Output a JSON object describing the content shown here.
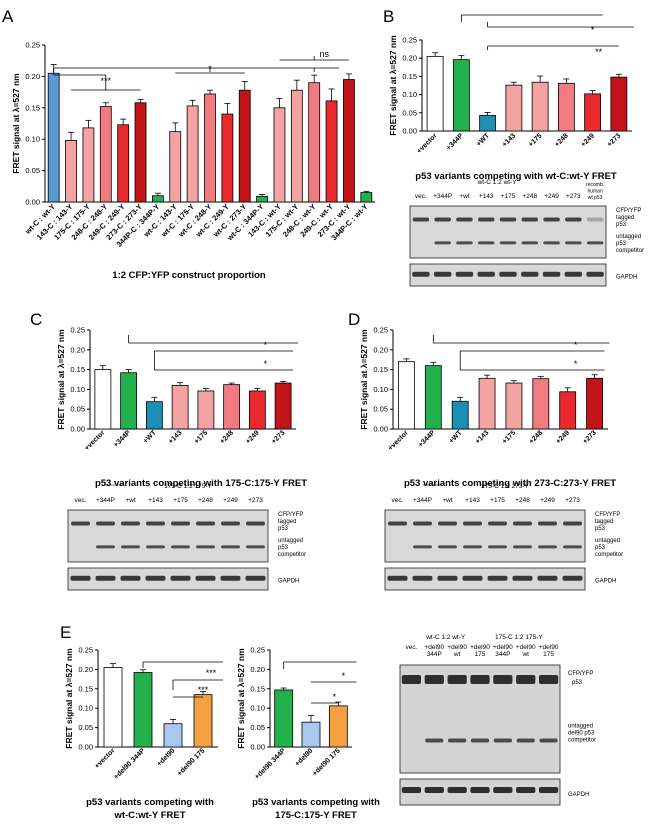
{
  "colors": {
    "blue": "#5b9bd5",
    "green": "#22b14c",
    "teal": "#1b8fb5",
    "pink1": "#f4a3a3",
    "pink2": "#f07b80",
    "red": "#e8292e",
    "dark": "#c3141a",
    "dark2": "#a10d14",
    "white": "#ffffff",
    "lightblue": "#a8c8f0",
    "orange": "#f5a040"
  },
  "chart_data": [
    {
      "panel": "A",
      "type": "bar",
      "ylabel": "FRET signal at λ=527 nm",
      "ylim": [
        0,
        0.25
      ],
      "yticks": [
        "0.00",
        "0.05",
        "0.10",
        "0.15",
        "0.20",
        "0.25"
      ],
      "xlabel": "1:2 CFP:YFP construct proportion",
      "categories": [
        "wt-C : wt-Y",
        "143-C : 143-Y",
        "175-C : 175-Y",
        "248-C : 248-Y",
        "249-C : 249-Y",
        "273-C : 273-Y",
        "344P-C : 344P-Y",
        "wt-C : 143-Y",
        "wt-C : 175-Y",
        "wt-C : 248-Y",
        "wt-C : 249-Y",
        "wt-C : 273-Y",
        "wt-C : 344P-Y",
        "143-C : wt-Y",
        "175-C : wt-Y",
        "248-C : wt-Y",
        "249-C : wt-Y",
        "273-C : wt-Y",
        "344P-C : wt-Y"
      ],
      "values": [
        0.205,
        0.098,
        0.118,
        0.152,
        0.123,
        0.158,
        0.01,
        0.112,
        0.153,
        0.172,
        0.14,
        0.178,
        0.009,
        0.15,
        0.178,
        0.19,
        0.161,
        0.195,
        0.015
      ],
      "errors": [
        0.014,
        0.013,
        0.012,
        0.006,
        0.009,
        0.005,
        0.004,
        0.014,
        0.009,
        0.006,
        0.017,
        0.014,
        0.003,
        0.015,
        0.016,
        0.012,
        0.019,
        0.009,
        0.002
      ],
      "colors": [
        "blue",
        "pink1",
        "pink1",
        "pink2",
        "red",
        "dark",
        "green",
        "pink1",
        "pink1",
        "pink2",
        "red",
        "dark",
        "green",
        "pink1",
        "pink1",
        "pink2",
        "red",
        "dark",
        "green"
      ],
      "sig": [
        "***",
        "*",
        "ns"
      ]
    },
    {
      "panel": "B",
      "type": "bar",
      "ylabel": "FRET signal at λ=527 nm",
      "ylim": [
        0,
        0.25
      ],
      "yticks": [
        "0.00",
        "0.05",
        "0.10",
        "0.15",
        "0.20",
        "0.25"
      ],
      "title": "p53 variants competing with wt-C:wt-Y FRET",
      "categories": [
        "+vector",
        "+344P",
        "+WT",
        "+143",
        "+175",
        "+248",
        "+249",
        "+273"
      ],
      "values": [
        0.205,
        0.196,
        0.043,
        0.126,
        0.134,
        0.131,
        0.102,
        0.148
      ],
      "errors": [
        0.01,
        0.011,
        0.008,
        0.008,
        0.017,
        0.012,
        0.009,
        0.008
      ],
      "colors": [
        "white",
        "green",
        "teal",
        "pink1",
        "pink1",
        "pink2",
        "red",
        "dark"
      ],
      "sig": [
        "*",
        "**"
      ]
    },
    {
      "panel": "C",
      "type": "bar",
      "ylabel": "FRET signal at λ=527 nm",
      "ylim": [
        0,
        0.25
      ],
      "yticks": [
        "0.00",
        "0.05",
        "0.10",
        "0.15",
        "0.20",
        "0.25"
      ],
      "title": "p53 variants competing with 175-C:175-Y FRET",
      "categories": [
        "+vector",
        "+344P",
        "+WT",
        "+143",
        "+175",
        "+248",
        "+249",
        "+273"
      ],
      "values": [
        0.15,
        0.142,
        0.069,
        0.11,
        0.096,
        0.112,
        0.096,
        0.116
      ],
      "errors": [
        0.01,
        0.008,
        0.011,
        0.007,
        0.006,
        0.004,
        0.006,
        0.004
      ],
      "colors": [
        "white",
        "green",
        "teal",
        "pink1",
        "pink1",
        "pink2",
        "red",
        "dark"
      ],
      "sig": [
        "*",
        "*"
      ]
    },
    {
      "panel": "D",
      "type": "bar",
      "ylabel": "FRET signal at λ=527 nm",
      "ylim": [
        0,
        0.25
      ],
      "yticks": [
        "0.00",
        "0.05",
        "0.10",
        "0.15",
        "0.20",
        "0.25"
      ],
      "title": "p53 variants competing with 273-C:273-Y FRET",
      "categories": [
        "+vector",
        "+344P",
        "+WT",
        "+143",
        "+175",
        "+248",
        "+249",
        "+273"
      ],
      "values": [
        0.17,
        0.16,
        0.07,
        0.128,
        0.116,
        0.127,
        0.094,
        0.128
      ],
      "errors": [
        0.007,
        0.008,
        0.01,
        0.008,
        0.006,
        0.006,
        0.01,
        0.009
      ],
      "colors": [
        "white",
        "green",
        "teal",
        "pink1",
        "pink1",
        "pink2",
        "red",
        "dark"
      ],
      "sig": [
        "*",
        "*"
      ]
    },
    {
      "panel": "E1",
      "type": "bar",
      "ylabel": "FRET signal at λ=527 nm",
      "ylim": [
        0,
        0.25
      ],
      "yticks": [
        "0.00",
        "0.05",
        "0.10",
        "0.15",
        "0.20",
        "0.25"
      ],
      "title": "p53 variants competing with wt-C:wt-Y FRET",
      "categories": [
        "+vector",
        "+del90 344P",
        "+del90",
        "+del90 175"
      ],
      "values": [
        0.205,
        0.192,
        0.06,
        0.135
      ],
      "errors": [
        0.01,
        0.007,
        0.011,
        0.008
      ],
      "colors": [
        "white",
        "green",
        "lightblue",
        "orange"
      ],
      "sig": [
        "***",
        "***"
      ]
    },
    {
      "panel": "E2",
      "type": "bar",
      "ylabel": "FRET signal at λ=527 nm",
      "ylim": [
        0,
        0.25
      ],
      "yticks": [
        "0.00",
        "0.05",
        "0.10",
        "0.15",
        "0.20",
        "0.25"
      ],
      "title": "p53 variants competing with 175-C:175-Y FRET",
      "categories": [
        "+del90 344P",
        "+del90",
        "+del90 175"
      ],
      "values": [
        0.147,
        0.064,
        0.106
      ],
      "errors": [
        0.005,
        0.017,
        0.01
      ],
      "colors": [
        "green",
        "lightblue",
        "orange"
      ],
      "sig": [
        "*",
        "*"
      ]
    }
  ],
  "panel_labels": [
    "A",
    "B",
    "C",
    "D",
    "E"
  ],
  "blots": {
    "B": {
      "lanes": [
        "vec.",
        "+344P",
        "+wt",
        "+143",
        "+175",
        "+248",
        "+249",
        "+273"
      ],
      "extra_lane": [
        "recomb.",
        "human",
        "wt p53"
      ],
      "header_line1": "wt-C  1:2  wt-Y",
      "right_labels": [
        "CFP/YFP",
        "tagged",
        "p53",
        "untagged",
        "p53",
        "competitor"
      ],
      "gapdh": "GAPDH"
    },
    "C": {
      "lanes": [
        "vec.",
        "+344P",
        "+wt",
        "+143",
        "+175",
        "+248",
        "+249",
        "+273"
      ],
      "header": "175-C 1:2  175-Y",
      "right_labels": [
        "CFP/YFP",
        "tagged",
        "p53",
        "untagged",
        "p53",
        "competitor"
      ],
      "gapdh": "GAPDH"
    },
    "D": {
      "lanes": [
        "vec.",
        "+344P",
        "+wt",
        "+143",
        "+175",
        "+248",
        "+249",
        "+273"
      ],
      "header": "273-C 1:2  273-Y",
      "right_labels": [
        "CFP/YFP",
        "tagged",
        "p53",
        "untagged",
        "p53",
        "competitor"
      ],
      "gapdh": "GAPDH"
    },
    "E": {
      "header_left": "wt-C 1:2 wt-Y",
      "header_right": "175-C 1:2 175-Y",
      "lanes": [
        [
          "vec."
        ],
        [
          "+del90",
          "344P"
        ],
        [
          "+del90",
          "wt"
        ],
        [
          "+del90",
          "175"
        ],
        [
          "+del90",
          "344P"
        ],
        [
          "+del90",
          "wt"
        ],
        [
          "+del90",
          "175"
        ]
      ],
      "right_labels": [
        "CFP/YFP",
        "p53",
        "untagged",
        "del90 p53",
        "competitor"
      ],
      "gapdh": "GAPDH"
    }
  }
}
